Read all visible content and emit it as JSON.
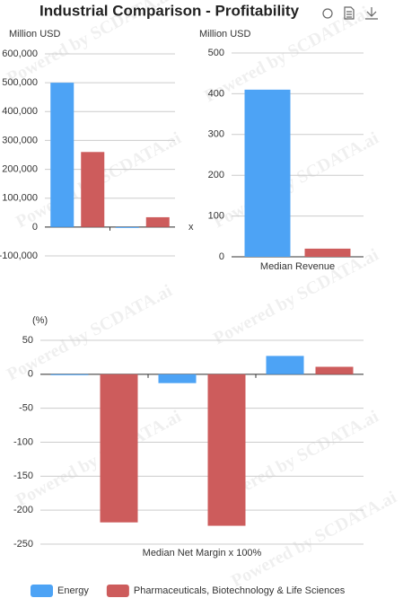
{
  "title": "Industrial Comparison - Profitability",
  "watermark": "Powered by SCDATA.ai",
  "chart_data": [
    {
      "type": "bar",
      "ylabel": "Million USD",
      "xlabel": "x",
      "categories": [
        null,
        null
      ],
      "series": [
        {
          "color": "#4da3f5",
          "values": [
            500000,
            -3000
          ]
        },
        {
          "color": "#cd5c5c",
          "values": [
            260000,
            34000
          ]
        }
      ],
      "ylim": [
        -100000,
        600000
      ],
      "yticks": [
        {
          "value": -100000,
          "label": "-100,000"
        },
        0,
        {
          "value": 100000,
          "label": "100,000"
        },
        {
          "value": 200000,
          "label": "200,000"
        },
        {
          "value": 300000,
          "label": "300,000"
        },
        {
          "value": 400000,
          "label": "400,000"
        },
        {
          "value": 500000,
          "label": "500,000"
        },
        {
          "value": 600000,
          "label": "600,000"
        }
      ],
      "grid": true
    },
    {
      "type": "bar",
      "ylabel": "Million USD",
      "categories": [
        "Median Revenue"
      ],
      "series": [
        {
          "color": "#4da3f5",
          "values": [
            410
          ]
        },
        {
          "color": "#cd5c5c",
          "values": [
            20
          ]
        }
      ],
      "ylim": [
        0,
        500
      ],
      "yticks": [
        0,
        100,
        200,
        300,
        400,
        500
      ],
      "grid": true
    },
    {
      "type": "bar",
      "ylabel": "(%)",
      "categories": [
        null,
        "Median Net Margin x 100%",
        null
      ],
      "series": [
        {
          "name": "Energy",
          "color": "#4da3f5",
          "values": [
            -1,
            -13,
            27
          ]
        },
        {
          "name": "Pharmaceuticals, Biotechnology & Life Sciences",
          "color": "#cd5c5c",
          "values": [
            -218,
            -223,
            11
          ]
        }
      ],
      "ylim": [
        -250,
        50
      ],
      "yticks": [
        -250,
        -200,
        -150,
        -100,
        -50,
        0,
        50
      ],
      "grid": true
    }
  ]
}
